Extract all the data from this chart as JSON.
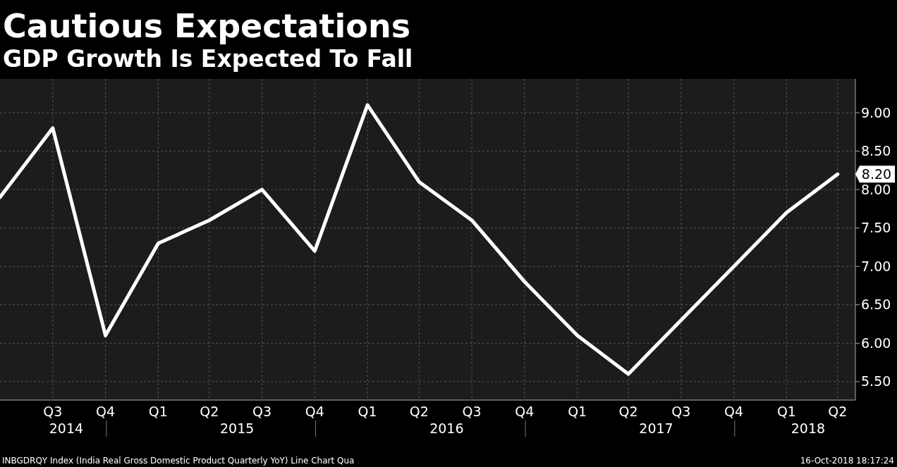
{
  "chart_data": {
    "type": "line",
    "title": "Cautious Expectations",
    "subtitle": "GDP Growth Is Expected To Fall",
    "x": [
      "2014-05-15",
      "2014-08-15",
      "2014-11-15",
      "2015-02-15",
      "2015-05-15",
      "2015-08-15",
      "2015-11-15",
      "2016-02-15",
      "2016-05-15",
      "2016-08-15",
      "2016-11-15",
      "2017-02-15",
      "2017-05-15",
      "2017-08-15",
      "2017-11-15",
      "2018-02-15",
      "2018-05-15"
    ],
    "series": [
      {
        "color": "#ffffff",
        "values": [
          7.9,
          8.8,
          6.1,
          7.3,
          7.6,
          8.0,
          7.2,
          9.1,
          8.1,
          7.6,
          6.8,
          6.1,
          5.6,
          6.3,
          7.0,
          7.7,
          8.2
        ]
      }
    ],
    "xlim": [
      "2014-05-15",
      "2018-06-15"
    ],
    "xticks": [
      {
        "value": "2014-08-15",
        "label": "Q3"
      },
      {
        "value": "2014-11-15",
        "label": "Q4"
      },
      {
        "value": "2015-02-15",
        "label": "Q1"
      },
      {
        "value": "2015-05-15",
        "label": "Q2"
      },
      {
        "value": "2015-08-15",
        "label": "Q3"
      },
      {
        "value": "2015-11-15",
        "label": "Q4"
      },
      {
        "value": "2016-02-15",
        "label": "Q1"
      },
      {
        "value": "2016-05-15",
        "label": "Q2"
      },
      {
        "value": "2016-08-15",
        "label": "Q3"
      },
      {
        "value": "2016-11-15",
        "label": "Q4"
      },
      {
        "value": "2017-02-15",
        "label": "Q1"
      },
      {
        "value": "2017-05-15",
        "label": "Q2"
      },
      {
        "value": "2017-08-15",
        "label": "Q3"
      },
      {
        "value": "2017-11-15",
        "label": "Q4"
      },
      {
        "value": "2018-02-15",
        "label": "Q1"
      },
      {
        "value": "2018-05-15",
        "label": "Q2"
      }
    ],
    "ylim": [
      5.26,
      9.44
    ],
    "yticks": [
      {
        "value": 5.5,
        "label": "5.50"
      },
      {
        "value": 6,
        "label": "6.00"
      },
      {
        "value": 6.5,
        "label": "6.50"
      },
      {
        "value": 7,
        "label": "7.00"
      },
      {
        "value": 7.5,
        "label": "7.50"
      },
      {
        "value": 8,
        "label": "8.00"
      },
      {
        "value": 8.5,
        "label": "8.50"
      },
      {
        "value": 9,
        "label": "9.00"
      }
    ],
    "grid": true,
    "line_style": "solid",
    "marker": "none",
    "annotations": [
      "8.20",
      "2014",
      "2015",
      "2016",
      "2017",
      "2018",
      "INBGDRQY Index (India Real Gross Domestic Product Quarterly YoY) Line Chart  Qua",
      "16-Oct-2018 18:17:24"
    ]
  }
}
